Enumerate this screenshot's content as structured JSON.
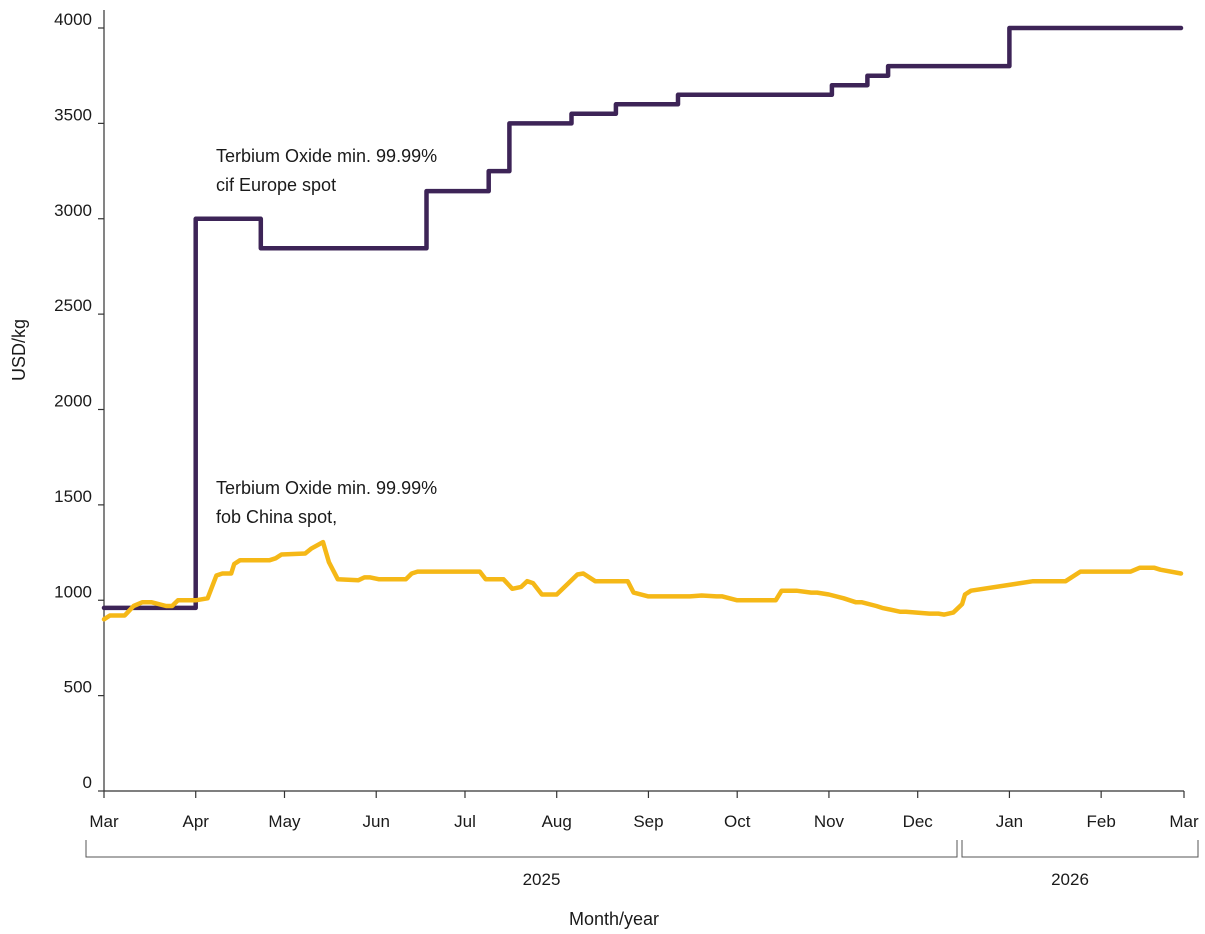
{
  "chart_data": {
    "type": "line",
    "xlabel": "Month/year",
    "ylabel": "USD/kg",
    "ylim": [
      0,
      4000
    ],
    "yticks": [
      0,
      500,
      1000,
      1500,
      2000,
      2500,
      3000,
      3500,
      4000
    ],
    "month_ticks": [
      "Mar",
      "Apr",
      "May",
      "Jun",
      "Jul",
      "Aug",
      "Sep",
      "Oct",
      "Nov",
      "Dec",
      "Jan",
      "Feb",
      "Mar"
    ],
    "year_groups": [
      {
        "label": "2025"
      },
      {
        "label": "2026"
      }
    ],
    "grid": false,
    "annotations": [
      {
        "series": "europe",
        "lines": [
          "Terbium Oxide min. 99.99%",
          "cif Europe spot"
        ]
      },
      {
        "series": "china",
        "lines": [
          "Terbium Oxide min. 99.99%",
          "fob China spot,"
        ]
      }
    ],
    "series": [
      {
        "id": "europe",
        "color": "#3d2457",
        "step": true,
        "x": [
          "2025-03-01",
          "2025-04-01",
          "2025-04-01",
          "2025-04-22",
          "2025-04-23",
          "2025-06-17",
          "2025-06-18",
          "2025-07-08",
          "2025-07-09",
          "2025-07-15",
          "2025-07-16",
          "2025-08-05",
          "2025-08-06",
          "2025-08-20",
          "2025-08-21",
          "2025-09-03",
          "2025-09-11",
          "2025-11-01",
          "2025-11-02",
          "2025-11-13",
          "2025-11-14",
          "2025-11-20",
          "2025-11-21",
          "2025-12-31",
          "2026-01-01",
          "2026-02-28"
        ],
        "values": [
          960,
          960,
          3000,
          3000,
          2845,
          2845,
          3145,
          3145,
          3250,
          3250,
          3500,
          3500,
          3550,
          3550,
          3600,
          3600,
          3650,
          3650,
          3700,
          3700,
          3750,
          3750,
          3800,
          3800,
          4000,
          4000
        ]
      },
      {
        "id": "china",
        "color": "#f5b817",
        "step": false,
        "x": [
          "2025-03-01",
          "2025-03-03",
          "2025-03-08",
          "2025-03-11",
          "2025-03-14",
          "2025-03-17",
          "2025-03-22",
          "2025-03-24",
          "2025-03-26",
          "2025-03-28",
          "2025-04-01",
          "2025-04-05",
          "2025-04-08",
          "2025-04-10",
          "2025-04-13",
          "2025-04-14",
          "2025-04-16",
          "2025-04-26",
          "2025-04-28",
          "2025-04-30",
          "2025-05-08",
          "2025-05-10",
          "2025-05-14",
          "2025-05-16",
          "2025-05-19",
          "2025-05-26",
          "2025-05-28",
          "2025-05-30",
          "2025-06-02",
          "2025-06-05",
          "2025-06-11",
          "2025-06-13",
          "2025-06-15",
          "2025-07-06",
          "2025-07-08",
          "2025-07-14",
          "2025-07-17",
          "2025-07-20",
          "2025-07-22",
          "2025-07-24",
          "2025-07-27",
          "2025-08-01",
          "2025-08-05",
          "2025-08-08",
          "2025-08-10",
          "2025-08-14",
          "2025-08-25",
          "2025-08-27",
          "2025-09-01",
          "2025-09-15",
          "2025-09-19",
          "2025-09-24",
          "2025-09-26",
          "2025-10-01",
          "2025-10-03",
          "2025-10-14",
          "2025-10-16",
          "2025-10-19",
          "2025-10-21",
          "2025-10-26",
          "2025-10-28",
          "2025-11-01",
          "2025-11-06",
          "2025-11-10",
          "2025-11-12",
          "2025-11-17",
          "2025-11-19",
          "2025-11-25",
          "2025-11-27",
          "2025-12-05",
          "2025-12-08",
          "2025-12-10",
          "2025-12-13",
          "2025-12-14",
          "2025-12-16",
          "2025-12-17",
          "2025-12-19",
          "2026-01-09",
          "2026-01-12",
          "2026-01-20",
          "2026-01-25",
          "2026-01-27",
          "2026-02-11",
          "2026-02-14",
          "2026-02-19",
          "2026-02-21",
          "2026-02-28"
        ],
        "values": [
          900,
          920,
          920,
          970,
          990,
          990,
          970,
          970,
          1000,
          1000,
          1000,
          1010,
          1130,
          1140,
          1140,
          1190,
          1210,
          1210,
          1220,
          1240,
          1245,
          1270,
          1305,
          1200,
          1110,
          1105,
          1120,
          1120,
          1110,
          1110,
          1110,
          1140,
          1150,
          1150,
          1110,
          1110,
          1060,
          1070,
          1100,
          1090,
          1030,
          1030,
          1090,
          1135,
          1140,
          1100,
          1100,
          1040,
          1020,
          1020,
          1025,
          1020,
          1020,
          1000,
          1000,
          1000,
          1050,
          1050,
          1050,
          1040,
          1040,
          1030,
          1010,
          990,
          990,
          970,
          960,
          940,
          940,
          930,
          930,
          925,
          935,
          950,
          980,
          1030,
          1050,
          1100,
          1100,
          1100,
          1150,
          1150,
          1150,
          1170,
          1170,
          1160,
          1140
        ]
      }
    ]
  }
}
